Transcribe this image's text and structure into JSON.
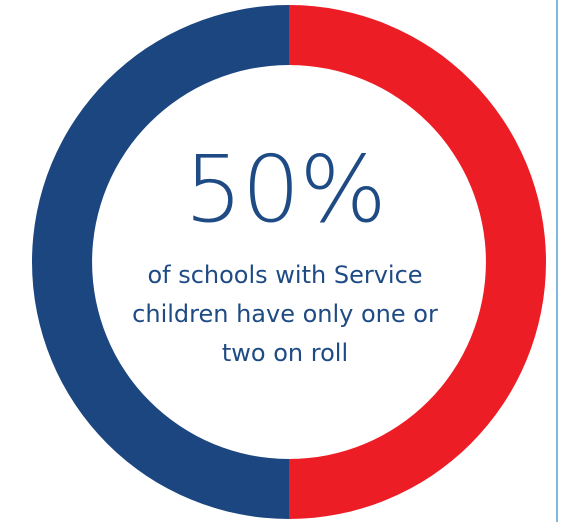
{
  "colors": {
    "blue": "#1b4680",
    "red": "#ed1d26",
    "text": "#1f4b84",
    "edge": "#7fb8e0"
  },
  "chart_data": {
    "type": "pie",
    "title": "",
    "slices": [
      {
        "label": "",
        "value": 50,
        "color": "#ed1d26"
      },
      {
        "label": "",
        "value": 50,
        "color": "#1b4680"
      }
    ],
    "annotation": {
      "value": "50%",
      "caption_lines": [
        "of schools with Service",
        "children have only one or",
        "two on roll"
      ]
    }
  }
}
